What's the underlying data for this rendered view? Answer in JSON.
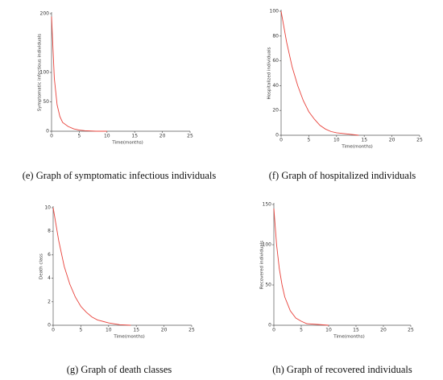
{
  "chart_data": [
    {
      "type": "line",
      "ylabel": "Symptomatic infectious individuals",
      "xlabel": "Time(months)",
      "caption": "(e) Graph of symptomatic infectious individuals",
      "x": [
        0,
        0.5,
        1,
        1.5,
        2,
        3,
        4,
        5,
        6,
        8,
        10
      ],
      "values": [
        195,
        90,
        45,
        25,
        15,
        8,
        4,
        2,
        1,
        0,
        0
      ],
      "color": "#e8413a",
      "xlim": [
        0,
        25
      ],
      "xticks": [
        0,
        5,
        10,
        15,
        20,
        25
      ],
      "ylim": [
        0,
        200
      ],
      "yticks": [
        0,
        50,
        100,
        200
      ]
    },
    {
      "type": "line",
      "ylabel": "Hospitalized individuals",
      "xlabel": "Time(months)",
      "caption": "(f) Graph of hospitalized individuals",
      "x": [
        0,
        1,
        2,
        3,
        4,
        5,
        6,
        7,
        8,
        9,
        10,
        12,
        14
      ],
      "values": [
        100,
        75,
        55,
        40,
        28,
        19,
        13,
        8,
        5,
        3,
        2,
        1,
        0
      ],
      "color": "#e8413a",
      "xlim": [
        0,
        25
      ],
      "xticks": [
        0,
        5,
        10,
        15,
        20,
        25
      ],
      "ylim": [
        0,
        100
      ],
      "yticks": [
        0,
        20,
        40,
        60,
        80,
        100
      ]
    },
    {
      "type": "line",
      "ylabel": "Death class",
      "xlabel": "Time(months)",
      "caption": "(g) Graph of death classes",
      "x": [
        0,
        1,
        2,
        3,
        4,
        5,
        6,
        7,
        8,
        10,
        12,
        14
      ],
      "values": [
        10,
        7.2,
        5,
        3.5,
        2.4,
        1.6,
        1.1,
        0.7,
        0.45,
        0.2,
        0.05,
        0
      ],
      "color": "#e8413a",
      "xlim": [
        0,
        25
      ],
      "xticks": [
        0,
        5,
        10,
        15,
        20,
        25
      ],
      "ylim": [
        0,
        10
      ],
      "yticks": [
        0,
        2,
        4,
        6,
        8,
        10
      ]
    },
    {
      "type": "line",
      "ylabel": "Recovered individuals",
      "xlabel": "Time(months)",
      "caption": "(h) Graph of recovered individuals",
      "x": [
        0,
        0.5,
        1,
        1.5,
        2,
        3,
        4,
        5,
        6,
        8,
        10
      ],
      "values": [
        145,
        100,
        70,
        50,
        35,
        18,
        9,
        5,
        2,
        1,
        0
      ],
      "color": "#e8413a",
      "xlim": [
        0,
        25
      ],
      "xticks": [
        0,
        5,
        10,
        15,
        20,
        25
      ],
      "ylim": [
        0,
        150
      ],
      "yticks": [
        0,
        50,
        100,
        150
      ]
    }
  ]
}
